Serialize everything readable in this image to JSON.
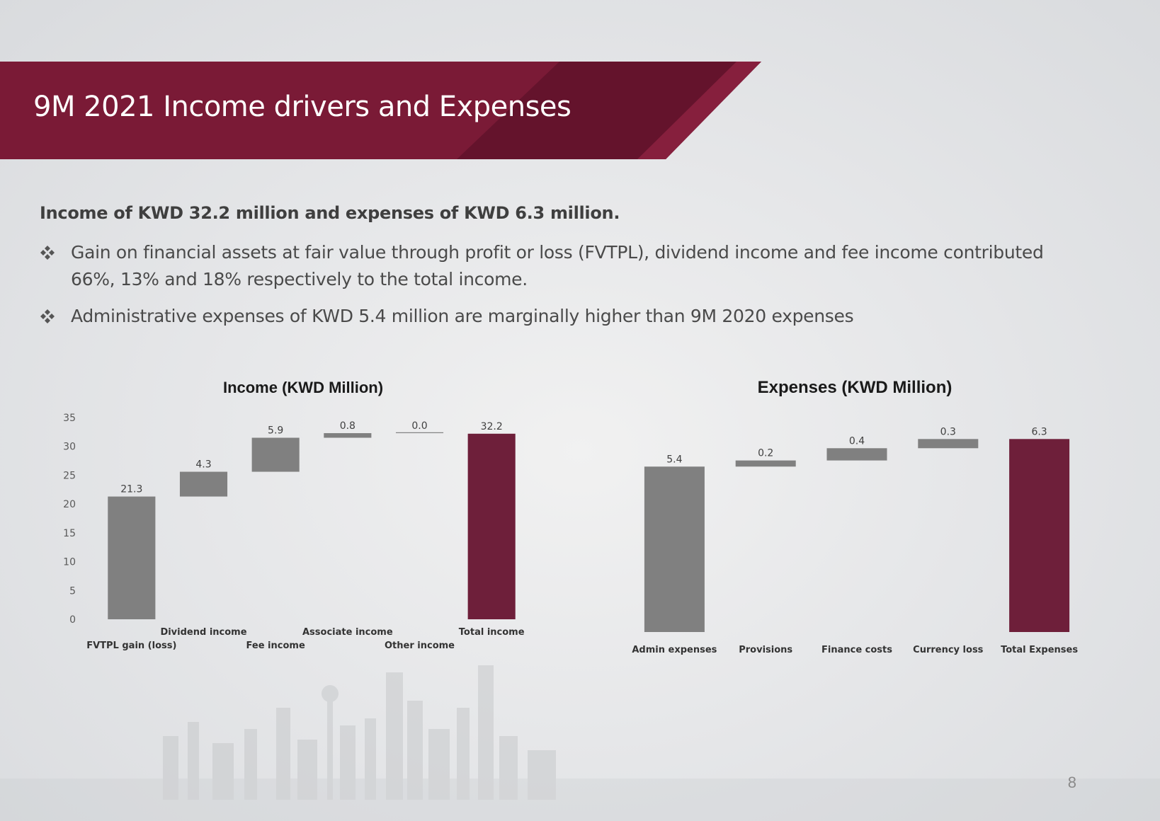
{
  "slide": {
    "title": "9M 2021 Income drivers and Expenses",
    "intro": "Income of KWD 32.2 million and expenses of KWD 6.3 million.",
    "bullets": [
      "Gain on financial assets at fair value through profit or loss (FVTPL), dividend income and fee income contributed 66%, 13% and 18% respectively to the total income.",
      "Administrative expenses of KWD 5.4 million are marginally higher than 9M 2020 expenses"
    ],
    "bullet_icon": "four-diamond-bullet-icon",
    "page_number": "8"
  },
  "colors": {
    "banner": "#7a1a36",
    "banner_dark": "#5e1229",
    "bar_gray": "#808080",
    "bar_total": "#6e1f3a"
  },
  "chart_data": [
    {
      "type": "bar",
      "subtype": "waterfall",
      "title": "Income (KWD Million)",
      "categories": [
        "FVTPL gain (loss)",
        "Dividend income",
        "Fee income",
        "Associate income",
        "Other income",
        "Total income"
      ],
      "values": [
        21.3,
        4.3,
        5.9,
        0.8,
        0.0,
        32.2
      ],
      "data_labels": [
        "21.3",
        "4.3",
        "5.9",
        "0.8",
        "0.0",
        "32.2"
      ],
      "total_index": 5,
      "ylim": [
        0,
        35
      ],
      "yticks": [
        "0",
        "5",
        "10",
        "15",
        "20",
        "25",
        "30",
        "35"
      ],
      "ytick_values": [
        0,
        5,
        10,
        15,
        20,
        25,
        30,
        35
      ],
      "staggered_labels": true,
      "grid": false,
      "legend": "none"
    },
    {
      "type": "bar",
      "subtype": "waterfall",
      "title": "Expenses (KWD Million)",
      "categories": [
        "Admin expenses",
        "Provisions",
        "Finance costs",
        "Currency loss",
        "Total Expenses"
      ],
      "values": [
        5.4,
        0.2,
        0.4,
        0.3,
        6.3
      ],
      "data_labels": [
        "5.4",
        "0.2",
        "0.4",
        "0.3",
        "6.3"
      ],
      "total_index": 4,
      "ylim": [
        0,
        7
      ],
      "yticks": [
        "0.00",
        "1.00",
        "2.00",
        "3.00",
        "4.00",
        "5.00",
        "6.00",
        "7.00"
      ],
      "ytick_values": [
        0,
        1,
        2,
        3,
        4,
        5,
        6,
        7
      ],
      "staggered_labels": false,
      "grid": false,
      "legend": "none"
    }
  ]
}
